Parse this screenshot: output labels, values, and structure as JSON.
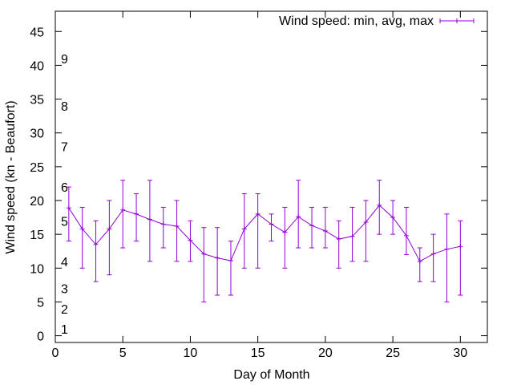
{
  "chart_data": {
    "type": "line",
    "xlabel": "Day of Month",
    "ylabel": "Wind speed (kn - Beaufort)",
    "xlim": [
      0,
      32
    ],
    "ylim": [
      -1,
      48
    ],
    "xticks": [
      0,
      5,
      10,
      15,
      20,
      25,
      30
    ],
    "yticks": [
      0,
      5,
      10,
      15,
      20,
      25,
      30,
      35,
      40,
      45
    ],
    "grid": false,
    "legend_position": "top-right",
    "series": [
      {
        "name": "Wind speed: min, avg, max",
        "color": "#9400d3",
        "style": "line-with-errorbars",
        "points": [
          {
            "x": 1,
            "y": 18.9,
            "min": 14,
            "max": 22
          },
          {
            "x": 2,
            "y": 15.8,
            "min": 10,
            "max": 19
          },
          {
            "x": 3,
            "y": 13.5,
            "min": 8,
            "max": 17
          },
          {
            "x": 4,
            "y": 15.8,
            "min": 9,
            "max": 20
          },
          {
            "x": 5,
            "y": 18.6,
            "min": 13,
            "max": 23
          },
          {
            "x": 6,
            "y": 18.0,
            "min": 14,
            "max": 21
          },
          {
            "x": 7,
            "y": 17.2,
            "min": 11,
            "max": 23
          },
          {
            "x": 8,
            "y": 16.5,
            "min": 13,
            "max": 19
          },
          {
            "x": 9,
            "y": 16.2,
            "min": 11,
            "max": 20
          },
          {
            "x": 10,
            "y": 14.1,
            "min": 11,
            "max": 17
          },
          {
            "x": 11,
            "y": 12.1,
            "min": 5,
            "max": 16
          },
          {
            "x": 12,
            "y": 11.5,
            "min": 6,
            "max": 16
          },
          {
            "x": 13,
            "y": 11.1,
            "min": 6,
            "max": 14
          },
          {
            "x": 14,
            "y": 15.8,
            "min": 10,
            "max": 21
          },
          {
            "x": 15,
            "y": 18.0,
            "min": 10,
            "max": 21
          },
          {
            "x": 16,
            "y": 16.5,
            "min": 14,
            "max": 18
          },
          {
            "x": 17,
            "y": 15.3,
            "min": 10,
            "max": 19
          },
          {
            "x": 18,
            "y": 17.6,
            "min": 13,
            "max": 23
          },
          {
            "x": 19,
            "y": 16.3,
            "min": 13,
            "max": 19
          },
          {
            "x": 20,
            "y": 15.5,
            "min": 13,
            "max": 19
          },
          {
            "x": 21,
            "y": 14.3,
            "min": 10,
            "max": 17
          },
          {
            "x": 22,
            "y": 14.7,
            "min": 11,
            "max": 19
          },
          {
            "x": 23,
            "y": 16.8,
            "min": 11,
            "max": 20
          },
          {
            "x": 24,
            "y": 19.3,
            "min": 15,
            "max": 23
          },
          {
            "x": 25,
            "y": 17.5,
            "min": 15,
            "max": 20
          },
          {
            "x": 26,
            "y": 14.8,
            "min": 12,
            "max": 19
          },
          {
            "x": 27,
            "y": 11.0,
            "min": 8,
            "max": 13
          },
          {
            "x": 28,
            "y": 12.1,
            "min": 8,
            "max": 15
          },
          {
            "x": 29,
            "y": 12.8,
            "min": 5,
            "max": 18
          },
          {
            "x": 30,
            "y": 13.2,
            "min": 6,
            "max": 17
          }
        ]
      }
    ],
    "annotations": [
      {
        "text": "1",
        "y": 1
      },
      {
        "text": "2",
        "y": 4
      },
      {
        "text": "3",
        "y": 7
      },
      {
        "text": "4",
        "y": 11
      },
      {
        "text": "5",
        "y": 17
      },
      {
        "text": "6",
        "y": 22
      },
      {
        "text": "7",
        "y": 28
      },
      {
        "text": "8",
        "y": 34
      },
      {
        "text": "9",
        "y": 41
      }
    ]
  }
}
